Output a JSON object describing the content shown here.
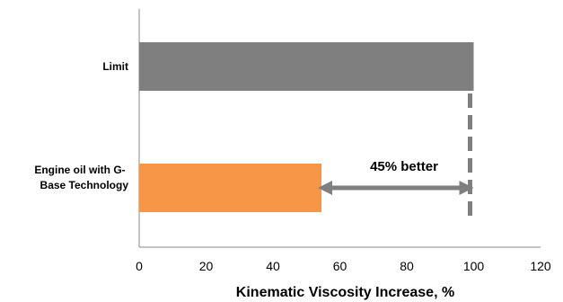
{
  "chart_data": {
    "type": "bar",
    "orientation": "horizontal",
    "title": "",
    "categories": [
      "Limit",
      "Engine oil with G-Base Technology"
    ],
    "category_label_lines": [
      [
        "Limit"
      ],
      [
        "Engine oil with G-",
        "Base Technology"
      ]
    ],
    "values": [
      100,
      54.5
    ],
    "colors": [
      "#7f7f7f",
      "#f79646"
    ],
    "xlabel": "Kinematic Viscosity Increase, %",
    "ylabel": "",
    "xlim": [
      0,
      120
    ],
    "xticks": [
      "0",
      "20",
      "40",
      "60",
      "80",
      "100",
      "120"
    ],
    "grid": false,
    "legend": "none",
    "annotations": {
      "improvement_text": "45% better",
      "limit_reference_value": 100,
      "arrow_color": "#7f7f7f",
      "dashed_line_color": "#7f7f7f"
    }
  }
}
